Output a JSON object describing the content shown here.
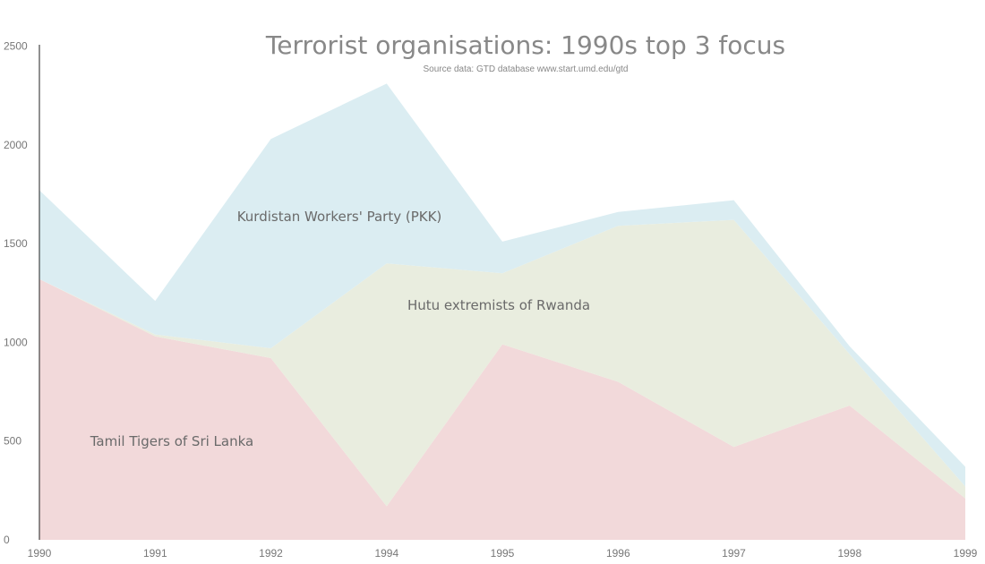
{
  "chart_data": {
    "type": "area",
    "stacked": true,
    "title": "Terrorist organisations: 1990s top 3 focus",
    "subtitle": "Source data: GTD database www.start.umd.edu/gtd",
    "xlabel": "",
    "ylabel": "",
    "ylim": [
      0,
      2500
    ],
    "yticks": [
      "0",
      "500",
      "1000",
      "1500",
      "2000",
      "2500"
    ],
    "categories": [
      "1990",
      "1991",
      "1992",
      "1994",
      "1995",
      "1996",
      "1997",
      "1998",
      "1999"
    ],
    "grid": false,
    "legend": "none",
    "series": [
      {
        "name": "Tamil Tigers of Sri Lanka",
        "color": "#f2d9da",
        "values": [
          1320,
          1030,
          920,
          170,
          990,
          800,
          470,
          680,
          210
        ]
      },
      {
        "name": "Hutu extremists of Rwanda",
        "color": "#e9eddf",
        "values": [
          0,
          10,
          50,
          1230,
          360,
          790,
          1150,
          260,
          60
        ]
      },
      {
        "name": "Kurdistan Workers' Party (PKK)",
        "color": "#dbedf2",
        "values": [
          450,
          170,
          1060,
          910,
          160,
          70,
          100,
          40,
          100
        ]
      }
    ]
  }
}
